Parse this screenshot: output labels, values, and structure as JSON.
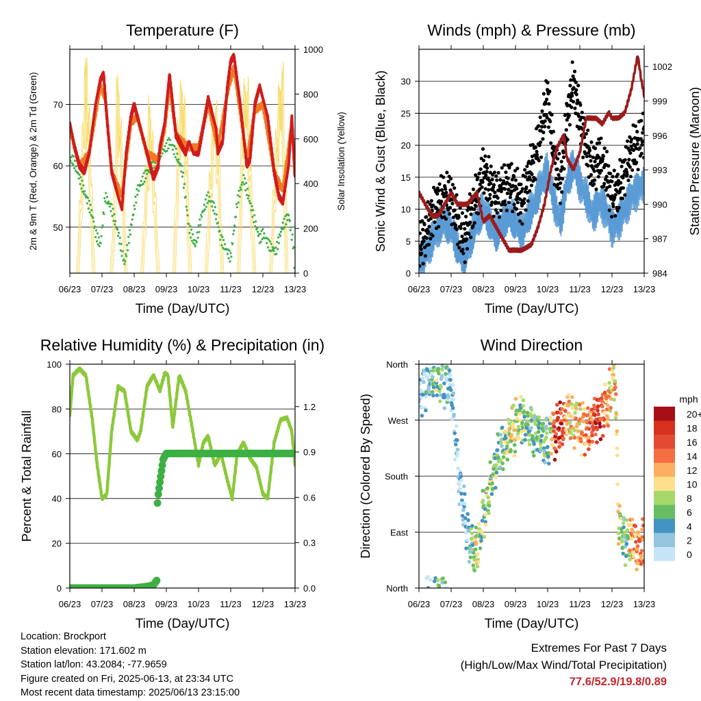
{
  "colors": {
    "temp_2m": "#d01c1c",
    "temp_9m": "#f07a23",
    "dewpoint": "#3cb043",
    "solar": "#f8dc6a",
    "wind": "#5b9bd5",
    "gust": "#000000",
    "pressure": "#9b1b1b",
    "rh": "#8cc83c",
    "precip": "#3cb043",
    "extremes": "#c6262e"
  },
  "time_ticks": [
    "06/23",
    "07/23",
    "08/23",
    "09/23",
    "10/23",
    "11/23",
    "12/23",
    "13/23"
  ],
  "xlabel": "Time (Day/UTC)",
  "info": {
    "location": "Location: Brockport",
    "elevation": "Station elevation: 171.602 m",
    "latlon": "Station lat/lon: 43.2084; -77.9659",
    "created": "Figure created on Fri, 2025-06-13, at 23:34 UTC",
    "recent": "Most recent data timestamp: 2025/06/13 23:15:00"
  },
  "extremes": {
    "title": "Extremes For Past 7 Days",
    "subtitle": "(High/Low/Max Wind/Total Precipitation)",
    "values": "77.6/52.9/19.8/0.89"
  },
  "wind_legend": {
    "unit": "mph",
    "labels": [
      "20+",
      "18",
      "16",
      "14",
      "12",
      "10",
      "8",
      "6",
      "4",
      "2",
      "0"
    ],
    "colors": [
      "#a50f15",
      "#d7301f",
      "#e34a33",
      "#f46d43",
      "#fdae61",
      "#fee08b",
      "#a6d96a",
      "#66bd63",
      "#4393c3",
      "#92c5de",
      "#c6e6f7"
    ]
  },
  "chart_data": [
    {
      "type": "line",
      "title": "Temperature (F)",
      "xlabel": "Time (Day/UTC)",
      "ylabel": "2m & 9m T (Red, Orange) & 2m Td (Green)",
      "ylabel_right": "Solar Insolation (Yellow)",
      "ylim": [
        42.5,
        79
      ],
      "yticks": [
        50,
        60,
        70
      ],
      "ylim_right": [
        0,
        1000
      ],
      "yticks_right": [
        0,
        200,
        400,
        600,
        800,
        1000
      ],
      "x_days": [
        6,
        13
      ],
      "grid": true,
      "series": [
        {
          "name": "2m T",
          "x": [
            6.0,
            6.15,
            6.3,
            6.45,
            6.6,
            6.8,
            6.95,
            7.05,
            7.15,
            7.3,
            7.5,
            7.62,
            7.75,
            7.9,
            8.0,
            8.1,
            8.2,
            8.4,
            8.6,
            8.75,
            8.8,
            8.95,
            9.1,
            9.3,
            9.5,
            9.6,
            9.7,
            9.85,
            10.0,
            10.1,
            10.3,
            10.55,
            10.6,
            10.75,
            10.9,
            11.0,
            11.1,
            11.3,
            11.5,
            11.6,
            11.75,
            11.9,
            12.0,
            12.15,
            12.35,
            12.5,
            12.62,
            12.8,
            12.9,
            13.0
          ],
          "values": [
            67,
            63,
            60,
            59,
            62,
            70,
            74,
            75,
            68,
            59,
            55,
            53,
            62,
            68,
            70,
            68,
            66,
            62,
            58,
            60,
            63,
            67,
            75,
            65,
            63,
            62,
            64,
            62,
            62,
            65,
            71,
            66,
            62,
            64,
            73,
            77,
            78,
            70,
            60,
            61,
            70,
            73,
            71,
            68,
            59,
            55,
            54,
            60,
            68,
            58
          ]
        },
        {
          "name": "9m T",
          "x": [
            6.0,
            6.3,
            6.6,
            6.95,
            7.1,
            7.3,
            7.62,
            7.9,
            8.1,
            8.4,
            8.75,
            8.95,
            9.1,
            9.3,
            9.7,
            10.0,
            10.3,
            10.6,
            10.9,
            11.1,
            11.5,
            11.75,
            12.0,
            12.35,
            12.62,
            12.9,
            13.0
          ],
          "values": [
            66,
            60,
            62,
            73,
            71,
            59,
            55,
            67,
            68,
            62,
            61,
            66,
            73,
            65,
            63,
            63,
            70,
            63,
            72,
            76,
            61,
            69,
            70,
            59,
            56,
            67,
            58
          ]
        },
        {
          "name": "2m Td",
          "x": [
            6.0,
            6.1,
            6.3,
            6.5,
            6.7,
            6.8,
            6.95,
            7.1,
            7.3,
            7.5,
            7.7,
            7.9,
            8.1,
            8.2,
            8.4,
            8.6,
            8.8,
            9.0,
            9.1,
            9.3,
            9.5,
            9.7,
            9.9,
            10.1,
            10.3,
            10.5,
            10.7,
            10.9,
            11.0,
            11.2,
            11.4,
            11.5,
            11.7,
            11.9,
            12.0,
            12.2,
            12.4,
            12.6,
            12.8,
            12.95,
            13.0
          ],
          "values": [
            61,
            61,
            58,
            55,
            52,
            49,
            47,
            55,
            53,
            49,
            44,
            50,
            56,
            57,
            59,
            60,
            62,
            63,
            64,
            62,
            59,
            50,
            47,
            52,
            55,
            53,
            48,
            46,
            45,
            54,
            58,
            56,
            52,
            48,
            49,
            47,
            46,
            50,
            52,
            47,
            42
          ]
        },
        {
          "name": "Solar",
          "x": [
            6.0,
            6.2,
            6.35,
            6.45,
            6.55,
            6.7,
            7.0,
            7.25,
            7.35,
            7.45,
            7.55,
            7.7,
            8.0,
            8.2,
            8.35,
            8.45,
            8.55,
            8.7,
            9.0,
            9.2,
            9.35,
            9.45,
            9.55,
            9.7,
            10.0,
            10.2,
            10.35,
            10.45,
            10.55,
            10.7,
            11.0,
            11.2,
            11.35,
            11.45,
            11.55,
            11.7,
            12.0,
            12.2,
            12.35,
            12.45,
            12.55,
            12.7,
            13.0
          ],
          "values": [
            0,
            0,
            500,
            980,
            700,
            0,
            0,
            0,
            300,
            900,
            600,
            0,
            0,
            0,
            450,
            800,
            500,
            0,
            0,
            0,
            700,
            900,
            650,
            0,
            0,
            0,
            500,
            850,
            600,
            0,
            0,
            0,
            750,
            950,
            500,
            0,
            0,
            0,
            500,
            800,
            950,
            0,
            0
          ]
        }
      ]
    },
    {
      "type": "scatter",
      "title": "Winds (mph) & Pressure (mb)",
      "xlabel": "Time (Day/UTC)",
      "ylabel": "Sonic Wind & Gust (Blue, Black)",
      "ylabel_right": "Station Pressure (Maroon)",
      "ylim": [
        0,
        35
      ],
      "yticks": [
        0,
        5,
        10,
        15,
        20,
        25,
        30
      ],
      "ylim_right": [
        984,
        1003.5
      ],
      "yticks_right": [
        984,
        987,
        990,
        993,
        996,
        999,
        1002
      ],
      "x_days": [
        6,
        13
      ],
      "grid": true,
      "series": [
        {
          "name": "Gust",
          "x": [
            6.0,
            6.2,
            6.4,
            6.6,
            6.8,
            7.0,
            7.2,
            7.4,
            7.6,
            7.8,
            8.0,
            8.2,
            8.4,
            8.6,
            8.8,
            9.0,
            9.2,
            9.4,
            9.6,
            9.8,
            10.0,
            10.2,
            10.4,
            10.6,
            10.8,
            11.0,
            11.2,
            11.4,
            11.6,
            11.8,
            12.0,
            12.2,
            12.4,
            12.6,
            12.8,
            13.0
          ],
          "values": [
            4,
            6,
            9,
            11,
            12,
            12,
            8,
            5,
            9,
            12,
            16,
            14,
            12,
            13,
            14,
            13,
            11,
            15,
            18,
            22,
            28,
            18,
            14,
            24,
            30,
            24,
            20,
            16,
            18,
            16,
            12,
            13,
            16,
            19,
            20,
            22
          ]
        },
        {
          "name": "Wind",
          "x": [
            6.0,
            6.2,
            6.4,
            6.6,
            6.8,
            7.0,
            7.2,
            7.4,
            7.6,
            7.8,
            8.0,
            8.2,
            8.4,
            8.6,
            8.8,
            9.0,
            9.2,
            9.4,
            9.6,
            9.8,
            10.0,
            10.2,
            10.4,
            10.6,
            10.8,
            11.0,
            11.2,
            11.4,
            11.6,
            11.8,
            12.0,
            12.2,
            12.4,
            12.6,
            12.8,
            13.0
          ],
          "values": [
            2,
            3,
            5,
            7,
            8,
            7,
            4,
            2,
            5,
            8,
            10,
            8,
            6,
            8,
            9,
            8,
            6,
            9,
            11,
            14,
            16,
            11,
            8,
            14,
            17,
            14,
            12,
            9,
            11,
            10,
            7,
            8,
            10,
            12,
            13,
            14
          ]
        },
        {
          "name": "Pressure",
          "x": [
            6.0,
            6.2,
            6.4,
            6.6,
            6.8,
            7.0,
            7.2,
            7.5,
            7.8,
            8.0,
            8.2,
            8.5,
            8.8,
            9.0,
            9.2,
            9.5,
            9.7,
            9.9,
            10.1,
            10.3,
            10.5,
            10.6,
            10.8,
            11.0,
            11.2,
            11.5,
            11.7,
            11.9,
            12.0,
            12.2,
            12.4,
            12.6,
            12.8,
            12.9,
            13.0
          ],
          "values": [
            991,
            990,
            989,
            989,
            990,
            991,
            990,
            990,
            991,
            988.5,
            989,
            987.5,
            986,
            986,
            986,
            986.5,
            988,
            990,
            993,
            995,
            996,
            994,
            993,
            994.5,
            997.5,
            997.5,
            997,
            998,
            997.5,
            997.5,
            998,
            1000,
            1003,
            1001,
            999.5
          ]
        }
      ]
    },
    {
      "type": "line",
      "title": "Relative Humidity (%) & Precipitation (in)",
      "xlabel": "Time (Day/UTC)",
      "ylabel": "Percent & Total Rainfall",
      "ylim": [
        0,
        100
      ],
      "yticks": [
        0,
        20,
        40,
        60,
        80,
        100
      ],
      "ylim_right": [
        0,
        1.48
      ],
      "yticks_right": [
        "0.0",
        "0.3",
        "0.6",
        "0.9",
        "1.2"
      ],
      "x_days": [
        6,
        13
      ],
      "grid": true,
      "series": [
        {
          "name": "RH",
          "x": [
            6.0,
            6.1,
            6.3,
            6.5,
            6.7,
            6.85,
            7.0,
            7.15,
            7.3,
            7.5,
            7.7,
            7.9,
            8.1,
            8.2,
            8.4,
            8.6,
            8.8,
            8.95,
            9.05,
            9.2,
            9.4,
            9.6,
            9.8,
            10.0,
            10.15,
            10.3,
            10.5,
            10.7,
            10.9,
            11.05,
            11.2,
            11.4,
            11.6,
            11.8,
            12.0,
            12.15,
            12.35,
            12.55,
            12.75,
            12.9,
            13.0
          ],
          "values": [
            77,
            95,
            98,
            95,
            75,
            55,
            40,
            42,
            70,
            90,
            88,
            70,
            66,
            70,
            90,
            95,
            88,
            96,
            95,
            72,
            95,
            88,
            72,
            55,
            65,
            68,
            55,
            60,
            48,
            40,
            60,
            65,
            58,
            54,
            42,
            40,
            65,
            75,
            76,
            70,
            55
          ]
        },
        {
          "name": "Precipitation",
          "x": [
            6.0,
            6.5,
            7.0,
            7.5,
            8.0,
            8.4,
            8.6,
            8.7,
            8.72,
            8.75,
            8.8,
            8.9,
            9.0,
            9.5,
            10.0,
            11.0,
            12.0,
            13.0
          ],
          "values": [
            0,
            0,
            0,
            0,
            0,
            0.01,
            0.02,
            0.05,
            0.55,
            0.62,
            0.7,
            0.85,
            0.89,
            0.89,
            0.89,
            0.89,
            0.89,
            0.89
          ]
        }
      ]
    },
    {
      "type": "scatter",
      "title": "Wind Direction",
      "xlabel": "Time (Day/UTC)",
      "ylabel": "Direction (Colored By Speed)",
      "yticks": [
        "North",
        "East",
        "South",
        "West",
        "North"
      ],
      "ylim": [
        0,
        360
      ],
      "x_days": [
        6,
        13
      ],
      "grid": true,
      "legend": "right",
      "series": [
        {
          "name": "Direction",
          "x": [
            6.0,
            6.2,
            6.4,
            6.5,
            6.6,
            6.8,
            7.0,
            7.2,
            7.4,
            7.5,
            7.6,
            7.7,
            7.8,
            7.9,
            8.0,
            8.2,
            8.4,
            8.6,
            8.8,
            9.0,
            9.2,
            9.4,
            9.6,
            9.8,
            10.0,
            10.1,
            10.2,
            10.4,
            10.6,
            10.8,
            11.0,
            11.2,
            11.4,
            11.6,
            11.8,
            11.9,
            12.0,
            12.1,
            12.2,
            12.4,
            12.6,
            12.8,
            13.0
          ],
          "values": [
            300,
            330,
            340,
            350,
            345,
            330,
            320,
            200,
            120,
            95,
            70,
            60,
            60,
            80,
            120,
            160,
            200,
            220,
            240,
            260,
            270,
            260,
            250,
            240,
            230,
            260,
            250,
            260,
            270,
            270,
            260,
            250,
            265,
            280,
            290,
            300,
            330,
            350,
            110,
            80,
            75,
            70,
            70
          ],
          "speed": [
            1,
            2,
            3,
            6,
            7,
            3,
            2,
            1,
            2,
            2,
            4,
            7,
            10,
            8,
            6,
            8,
            6,
            5,
            9,
            9,
            7,
            6,
            5,
            6,
            5,
            8,
            16,
            18,
            12,
            10,
            11,
            14,
            15,
            18,
            12,
            12,
            9,
            11,
            10,
            4,
            12,
            13,
            14
          ]
        }
      ]
    }
  ]
}
